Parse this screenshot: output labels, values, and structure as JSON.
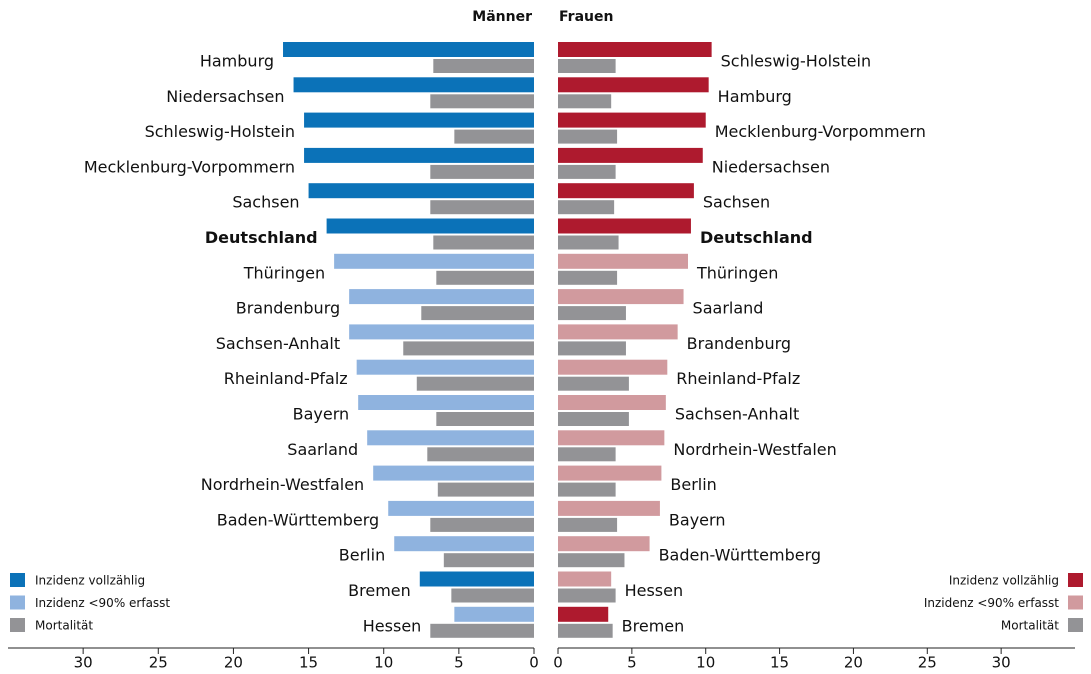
{
  "chart_data": [
    {
      "type": "butterfly-bar",
      "direction": "left",
      "title": "Männer",
      "categories": [
        "Hamburg",
        "Niedersachsen",
        "Schleswig-Holstein",
        "Mecklenburg-Vorpommern",
        "Sachsen",
        "Deutschland",
        "Thüringen",
        "Brandenburg",
        "Sachsen-Anhalt",
        "Rheinland-Pfalz",
        "Bayern",
        "Saarland",
        "Nordrhein-Westfalen",
        "Baden-Württemberg",
        "Berlin",
        "Bremen",
        "Hessen"
      ],
      "highlight_index": 5,
      "incidence": [
        16.7,
        16.0,
        15.3,
        15.3,
        15.0,
        13.8,
        13.3,
        12.3,
        12.3,
        11.8,
        11.7,
        11.1,
        10.7,
        9.7,
        9.3,
        7.6,
        5.3
      ],
      "incidence_complete": [
        true,
        true,
        true,
        true,
        true,
        true,
        false,
        false,
        false,
        false,
        false,
        false,
        false,
        false,
        false,
        true,
        false
      ],
      "mortality": [
        6.7,
        6.9,
        5.3,
        6.9,
        6.9,
        6.7,
        6.5,
        7.5,
        8.7,
        7.8,
        6.5,
        7.1,
        6.4,
        6.9,
        6.0,
        5.5,
        6.9
      ],
      "legend": {
        "position": "bottom-left",
        "items": [
          {
            "label": "Inzidenz vollzählig",
            "color": "#0b72b8"
          },
          {
            "label": "Inzidenz <90% erfasst",
            "color": "#8fb3df"
          },
          {
            "label": "Mortalität",
            "color": "#939396"
          }
        ]
      },
      "xlim": [
        0,
        35
      ],
      "xticks": [
        0,
        5,
        10,
        15,
        20,
        25,
        30
      ]
    },
    {
      "type": "butterfly-bar",
      "direction": "right",
      "title": "Frauen",
      "categories": [
        "Schleswig-Holstein",
        "Hamburg",
        "Mecklenburg-Vorpommern",
        "Niedersachsen",
        "Sachsen",
        "Deutschland",
        "Thüringen",
        "Saarland",
        "Brandenburg",
        "Rheinland-Pfalz",
        "Sachsen-Anhalt",
        "Nordrhein-Westfalen",
        "Berlin",
        "Bayern",
        "Baden-Württemberg",
        "Hessen",
        "Bremen"
      ],
      "highlight_index": 5,
      "incidence": [
        10.4,
        10.2,
        10.0,
        9.8,
        9.2,
        9.0,
        8.8,
        8.5,
        8.1,
        7.4,
        7.3,
        7.2,
        7.0,
        6.9,
        6.2,
        3.6,
        3.4
      ],
      "incidence_complete": [
        true,
        true,
        true,
        true,
        true,
        true,
        false,
        false,
        false,
        false,
        false,
        false,
        false,
        false,
        false,
        false,
        true
      ],
      "mortality": [
        3.9,
        3.6,
        4.0,
        3.9,
        3.8,
        4.1,
        4.0,
        4.6,
        4.6,
        4.8,
        4.8,
        3.9,
        3.9,
        4.0,
        4.5,
        3.9,
        3.7
      ],
      "legend": {
        "position": "bottom-right",
        "items": [
          {
            "label": "Inzidenz vollzählig",
            "color": "#ae1a2e"
          },
          {
            "label": "Inzidenz <90% erfasst",
            "color": "#d19a9e"
          },
          {
            "label": "Mortalität",
            "color": "#939396"
          }
        ]
      },
      "xlim": [
        0,
        35
      ],
      "xticks": [
        0,
        5,
        10,
        15,
        20,
        25,
        30
      ]
    }
  ]
}
